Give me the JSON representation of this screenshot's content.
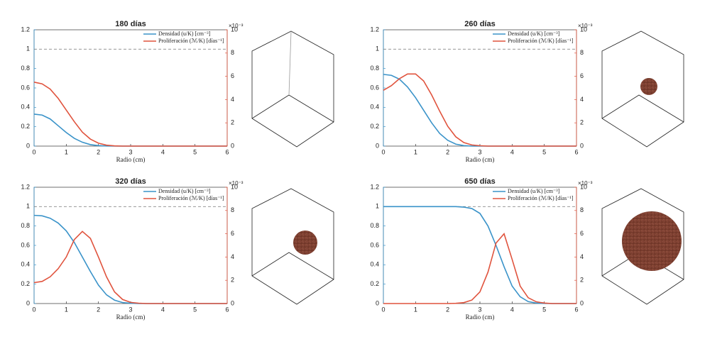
{
  "chart_data": [
    {
      "type": "line",
      "title": "180 días",
      "x_label": "Radio (cm)",
      "y2_exponent_label": "×10⁻³",
      "x": [
        0,
        0.25,
        0.5,
        0.75,
        1,
        1.25,
        1.5,
        1.75,
        2,
        2.25,
        2.5,
        2.75,
        3,
        3.25,
        3.5,
        3.75,
        4,
        4.25,
        4.5,
        4.75,
        5,
        5.25,
        5.5,
        5.75,
        6
      ],
      "xlim": [
        0,
        6
      ],
      "xticks": [
        0,
        1,
        2,
        3,
        4,
        5,
        6
      ],
      "ylim": [
        0,
        1.2
      ],
      "yticks": [
        0,
        0.2,
        0.4,
        0.6,
        0.8,
        1,
        1.2
      ],
      "y2lim": [
        0,
        10
      ],
      "y2ticks": [
        0,
        2,
        4,
        6,
        8,
        10
      ],
      "hline": 1,
      "series": [
        {
          "name": "Densidad (u/K) [cm⁻³]",
          "color": "#3a93c9",
          "values": [
            0.33,
            0.32,
            0.28,
            0.21,
            0.14,
            0.08,
            0.04,
            0.015,
            0.005,
            0.001,
            0,
            0,
            0,
            0,
            0,
            0,
            0,
            0,
            0,
            0,
            0,
            0,
            0,
            0,
            0
          ]
        },
        {
          "name": "Proliferación (ℳ/K) [días⁻¹]",
          "color": "#e0533d",
          "axis": "y2",
          "values": [
            5.5,
            5.35,
            4.9,
            4.1,
            3.1,
            2.1,
            1.2,
            0.6,
            0.25,
            0.08,
            0.02,
            0,
            0,
            0,
            0,
            0,
            0,
            0,
            0,
            0,
            0,
            0,
            0,
            0,
            0
          ]
        }
      ]
    },
    {
      "type": "line",
      "title": "260 días",
      "x_label": "Radio (cm)",
      "y2_exponent_label": "×10⁻³",
      "x": [
        0,
        0.25,
        0.5,
        0.75,
        1,
        1.25,
        1.5,
        1.75,
        2,
        2.25,
        2.5,
        2.75,
        3,
        3.25,
        3.5,
        3.75,
        4,
        4.25,
        4.5,
        4.75,
        5,
        5.25,
        5.5,
        5.75,
        6
      ],
      "xlim": [
        0,
        6
      ],
      "xticks": [
        0,
        1,
        2,
        3,
        4,
        5,
        6
      ],
      "ylim": [
        0,
        1.2
      ],
      "yticks": [
        0,
        0.2,
        0.4,
        0.6,
        0.8,
        1,
        1.2
      ],
      "y2lim": [
        0,
        10
      ],
      "y2ticks": [
        0,
        2,
        4,
        6,
        8,
        10
      ],
      "hline": 1,
      "series": [
        {
          "name": "Densidad (u/K) [cm⁻³]",
          "color": "#3a93c9",
          "values": [
            0.74,
            0.73,
            0.69,
            0.61,
            0.5,
            0.37,
            0.24,
            0.13,
            0.06,
            0.02,
            0.005,
            0,
            0,
            0,
            0,
            0,
            0,
            0,
            0,
            0,
            0,
            0,
            0,
            0,
            0
          ]
        },
        {
          "name": "Proliferación (ℳ/K) [días⁻¹]",
          "color": "#e0533d",
          "axis": "y2",
          "values": [
            4.8,
            5.2,
            5.8,
            6.2,
            6.2,
            5.6,
            4.4,
            3.0,
            1.7,
            0.8,
            0.3,
            0.1,
            0.03,
            0,
            0,
            0,
            0,
            0,
            0,
            0,
            0,
            0,
            0,
            0,
            0
          ]
        }
      ]
    },
    {
      "type": "line",
      "title": "320 días",
      "x_label": "Radio (cm)",
      "y2_exponent_label": "×10⁻³",
      "x": [
        0,
        0.25,
        0.5,
        0.75,
        1,
        1.25,
        1.5,
        1.75,
        2,
        2.25,
        2.5,
        2.75,
        3,
        3.25,
        3.5,
        3.75,
        4,
        4.25,
        4.5,
        4.75,
        5,
        5.25,
        5.5,
        5.75,
        6
      ],
      "xlim": [
        0,
        6
      ],
      "xticks": [
        0,
        1,
        2,
        3,
        4,
        5,
        6
      ],
      "ylim": [
        0,
        1.2
      ],
      "yticks": [
        0,
        0.2,
        0.4,
        0.6,
        0.8,
        1,
        1.2
      ],
      "y2lim": [
        0,
        10
      ],
      "y2ticks": [
        0,
        2,
        4,
        6,
        8,
        10
      ],
      "hline": 1,
      "series": [
        {
          "name": "Densidad (u/K) [cm⁻³]",
          "color": "#3a93c9",
          "values": [
            0.91,
            0.905,
            0.88,
            0.83,
            0.75,
            0.63,
            0.48,
            0.33,
            0.19,
            0.09,
            0.035,
            0.01,
            0.003,
            0,
            0,
            0,
            0,
            0,
            0,
            0,
            0,
            0,
            0,
            0,
            0
          ]
        },
        {
          "name": "Proliferación (ℳ/K) [días⁻¹]",
          "color": "#e0533d",
          "axis": "y2",
          "values": [
            1.8,
            1.9,
            2.3,
            3.0,
            4.0,
            5.5,
            6.2,
            5.6,
            4.0,
            2.3,
            1.0,
            0.35,
            0.1,
            0.03,
            0,
            0,
            0,
            0,
            0,
            0,
            0,
            0,
            0,
            0,
            0
          ]
        }
      ]
    },
    {
      "type": "line",
      "title": "650 días",
      "x_label": "Radio (cm)",
      "y2_exponent_label": "×10⁻³",
      "x": [
        0,
        0.25,
        0.5,
        0.75,
        1,
        1.25,
        1.5,
        1.75,
        2,
        2.25,
        2.5,
        2.75,
        3,
        3.25,
        3.5,
        3.75,
        4,
        4.25,
        4.5,
        4.75,
        5,
        5.25,
        5.5,
        5.75,
        6
      ],
      "xlim": [
        0,
        6
      ],
      "xticks": [
        0,
        1,
        2,
        3,
        4,
        5,
        6
      ],
      "ylim": [
        0,
        1.2
      ],
      "yticks": [
        0,
        0.2,
        0.4,
        0.6,
        0.8,
        1,
        1.2
      ],
      "y2lim": [
        0,
        10
      ],
      "y2ticks": [
        0,
        2,
        4,
        6,
        8,
        10
      ],
      "hline": 1,
      "series": [
        {
          "name": "Densidad (u/K) [cm⁻³]",
          "color": "#3a93c9",
          "values": [
            1,
            1,
            1,
            1,
            1,
            1,
            1,
            1,
            1,
            1,
            0.995,
            0.98,
            0.93,
            0.8,
            0.6,
            0.38,
            0.18,
            0.07,
            0.02,
            0.005,
            0.001,
            0,
            0,
            0,
            0
          ]
        },
        {
          "name": "Proliferación (ℳ/K) [días⁻¹]",
          "color": "#e0533d",
          "axis": "y2",
          "values": [
            0,
            0,
            0,
            0,
            0,
            0,
            0,
            0,
            0,
            0.02,
            0.08,
            0.3,
            1.0,
            2.7,
            5.2,
            6.0,
            3.8,
            1.5,
            0.5,
            0.15,
            0.04,
            0,
            0,
            0,
            0
          ]
        }
      ]
    }
  ]
}
